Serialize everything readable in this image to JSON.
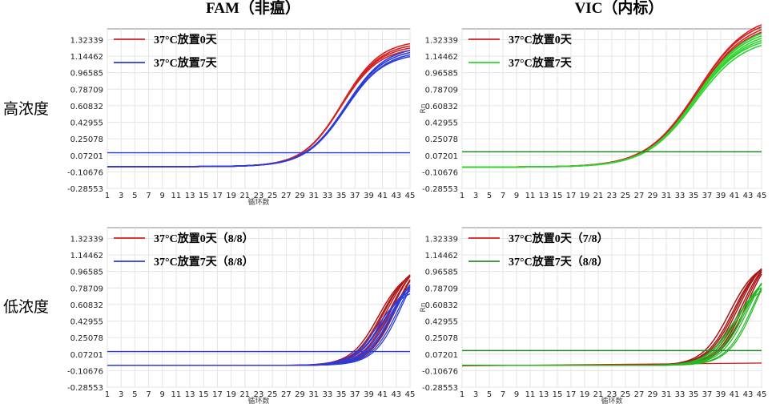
{
  "column_titles": [
    "FAM（非瘟）",
    "VIC（内标）"
  ],
  "row_labels": [
    "高浓度",
    "低浓度"
  ],
  "chart_data": [
    {
      "type": "line",
      "panel": "top-left",
      "ylabel": "",
      "xlabel": "循环数",
      "x_ticks": [
        1,
        3,
        5,
        7,
        9,
        11,
        13,
        15,
        17,
        19,
        21,
        23,
        25,
        27,
        29,
        31,
        33,
        35,
        37,
        39,
        41,
        43,
        45
      ],
      "y_ticks": [
        1.32339,
        1.14462,
        0.96585,
        0.78709,
        0.60832,
        0.42955,
        0.25078,
        0.07201,
        -0.10676,
        -0.28553
      ],
      "y_tick_labels": [
        "1.32339",
        "1.14462",
        "0.96585",
        "0.78709",
        "0.60832",
        "0.42955",
        "0.25078",
        "0.07201",
        "-0.10676",
        "-0.28553"
      ],
      "xlim": [
        1,
        45
      ],
      "ylim": [
        -0.28553,
        1.44
      ],
      "threshold": {
        "value": 0.1,
        "color": "#2a3bdc"
      },
      "legend": [
        {
          "label": "37°C放置0天",
          "color": "#d42020"
        },
        {
          "label": "37°C放置7天",
          "color": "#2a3bdc"
        }
      ],
      "series": [
        {
          "name": "37°C放置0天",
          "color": "#d42020",
          "count": 4,
          "baseline": -0.05,
          "plateau": 1.28,
          "ct_mid": 35.0,
          "slope": 2.8,
          "spread": 0.03,
          "mid_spread": 0.12,
          "width": 1.6
        },
        {
          "name": "37°C放置7天",
          "color": "#2a3bdc",
          "count": 4,
          "baseline": -0.05,
          "plateau": 1.22,
          "ct_mid": 35.6,
          "slope": 2.9,
          "spread": 0.03,
          "mid_spread": 0.12,
          "width": 1.6
        }
      ]
    },
    {
      "type": "line",
      "panel": "top-right",
      "ylabel": "Rn",
      "xlabel": "",
      "x_ticks": [
        1,
        3,
        5,
        7,
        9,
        11,
        13,
        15,
        17,
        19,
        21,
        23,
        25,
        27,
        29,
        31,
        33,
        35,
        37,
        39,
        41,
        43,
        45
      ],
      "y_ticks": [
        1.32339,
        1.14462,
        0.96585,
        0.78709,
        0.60832,
        0.42955,
        0.25078,
        0.07201,
        -0.10676,
        -0.28553
      ],
      "y_tick_labels": [
        "1.32339",
        "1.14462",
        "0.96585",
        "0.78709",
        "0.60832",
        "0.42955",
        "0.25078",
        "0.07201",
        "-0.10676",
        "-0.28553"
      ],
      "xlim": [
        1,
        45
      ],
      "ylim": [
        -0.28553,
        1.44
      ],
      "threshold": {
        "value": 0.11,
        "color": "#1f8a1f"
      },
      "legend": [
        {
          "label": "37°C放置0天",
          "color": "#d42020"
        },
        {
          "label": "37°C放置7天",
          "color": "#2fd42f"
        }
      ],
      "series": [
        {
          "name": "37°C放置0天",
          "color": "#d42020",
          "count": 4,
          "baseline": -0.055,
          "plateau": 1.56,
          "ct_mid": 35.5,
          "slope": 3.7,
          "spread": 0.03,
          "mid_spread": 0.12,
          "width": 1.6
        },
        {
          "name": "37°C放置7天",
          "color": "#2fd42f",
          "count": 6,
          "baseline": -0.055,
          "plateau": 1.42,
          "ct_mid": 35.3,
          "slope": 3.6,
          "spread": 0.05,
          "mid_spread": 0.15,
          "width": 1.6
        }
      ]
    },
    {
      "type": "line",
      "panel": "bottom-left",
      "ylabel": "",
      "xlabel": "循环数",
      "x_ticks": [
        1,
        3,
        5,
        7,
        9,
        11,
        13,
        15,
        17,
        19,
        21,
        23,
        25,
        27,
        29,
        31,
        33,
        35,
        37,
        39,
        41,
        43,
        45
      ],
      "y_ticks": [
        1.32339,
        1.14462,
        0.96585,
        0.78709,
        0.60832,
        0.42955,
        0.25078,
        0.07201,
        -0.10676,
        -0.28553
      ],
      "y_tick_labels": [
        "1.32339",
        "1.14462",
        "0.96585",
        "0.78709",
        "0.60832",
        "0.42955",
        "0.25078",
        "0.07201",
        "-0.10676",
        "-0.28553"
      ],
      "xlim": [
        1,
        45
      ],
      "ylim": [
        -0.28553,
        1.44
      ],
      "threshold": {
        "value": 0.1,
        "color": "#2a3bdc"
      },
      "legend": [
        {
          "label": "37°C放置0天（8/8）",
          "color": "#d42020"
        },
        {
          "label": "37°C放置7天（8/8）",
          "color": "#2a3bdc"
        }
      ],
      "series": [
        {
          "name": "37°C放置0天（8/8）",
          "color": "#b01818",
          "count": 8,
          "baseline": -0.05,
          "plateau": 1.12,
          "ct_mid": 41.8,
          "slope": 2.0,
          "spread": 0.1,
          "mid_spread": 1.4,
          "width": 1.5
        },
        {
          "name": "37°C放置7天（8/8）",
          "color": "#2a3bdc",
          "count": 8,
          "baseline": -0.05,
          "plateau": 1.02,
          "ct_mid": 42.1,
          "slope": 2.0,
          "spread": 0.22,
          "mid_spread": 1.8,
          "width": 1.3
        }
      ]
    },
    {
      "type": "line",
      "panel": "bottom-right",
      "ylabel": "Rn",
      "xlabel": "循环数",
      "x_ticks": [
        1,
        3,
        5,
        7,
        9,
        11,
        13,
        15,
        17,
        19,
        21,
        23,
        25,
        27,
        29,
        31,
        33,
        35,
        37,
        39,
        41,
        43,
        45
      ],
      "y_ticks": [
        1.32339,
        1.14462,
        0.96585,
        0.78709,
        0.60832,
        0.42955,
        0.25078,
        0.07201,
        -0.10676,
        -0.28553
      ],
      "y_tick_labels": [
        "1.32339",
        "1.14462",
        "0.96585",
        "0.78709",
        "0.60832",
        "0.42955",
        "0.25078",
        "0.07201",
        "-0.10676",
        "-0.28553"
      ],
      "xlim": [
        1,
        45
      ],
      "ylim": [
        -0.28553,
        1.44
      ],
      "threshold": {
        "value": 0.11,
        "color": "#1f8a1f"
      },
      "legend": [
        {
          "label": "37°C放置0天（7/8）",
          "color": "#d42020"
        },
        {
          "label": "37°C放置7天（8/8）",
          "color": "#2f8a2f"
        }
      ],
      "series": [
        {
          "name": "37°C放置0天（7/8）",
          "color": "#a81616",
          "count": 7,
          "baseline": -0.05,
          "plateau": 1.18,
          "ct_mid": 41.6,
          "slope": 2.0,
          "spread": 0.08,
          "mid_spread": 1.3,
          "width": 1.5
        },
        {
          "name": "37°C放置7天（8/8）",
          "color": "#22b822",
          "count": 8,
          "baseline": -0.05,
          "plateau": 1.08,
          "ct_mid": 42.4,
          "slope": 2.0,
          "spread": 0.22,
          "mid_spread": 1.8,
          "width": 1.2
        }
      ],
      "flat_series": {
        "color": "#d42020",
        "start": -0.055,
        "end": -0.025
      }
    }
  ]
}
